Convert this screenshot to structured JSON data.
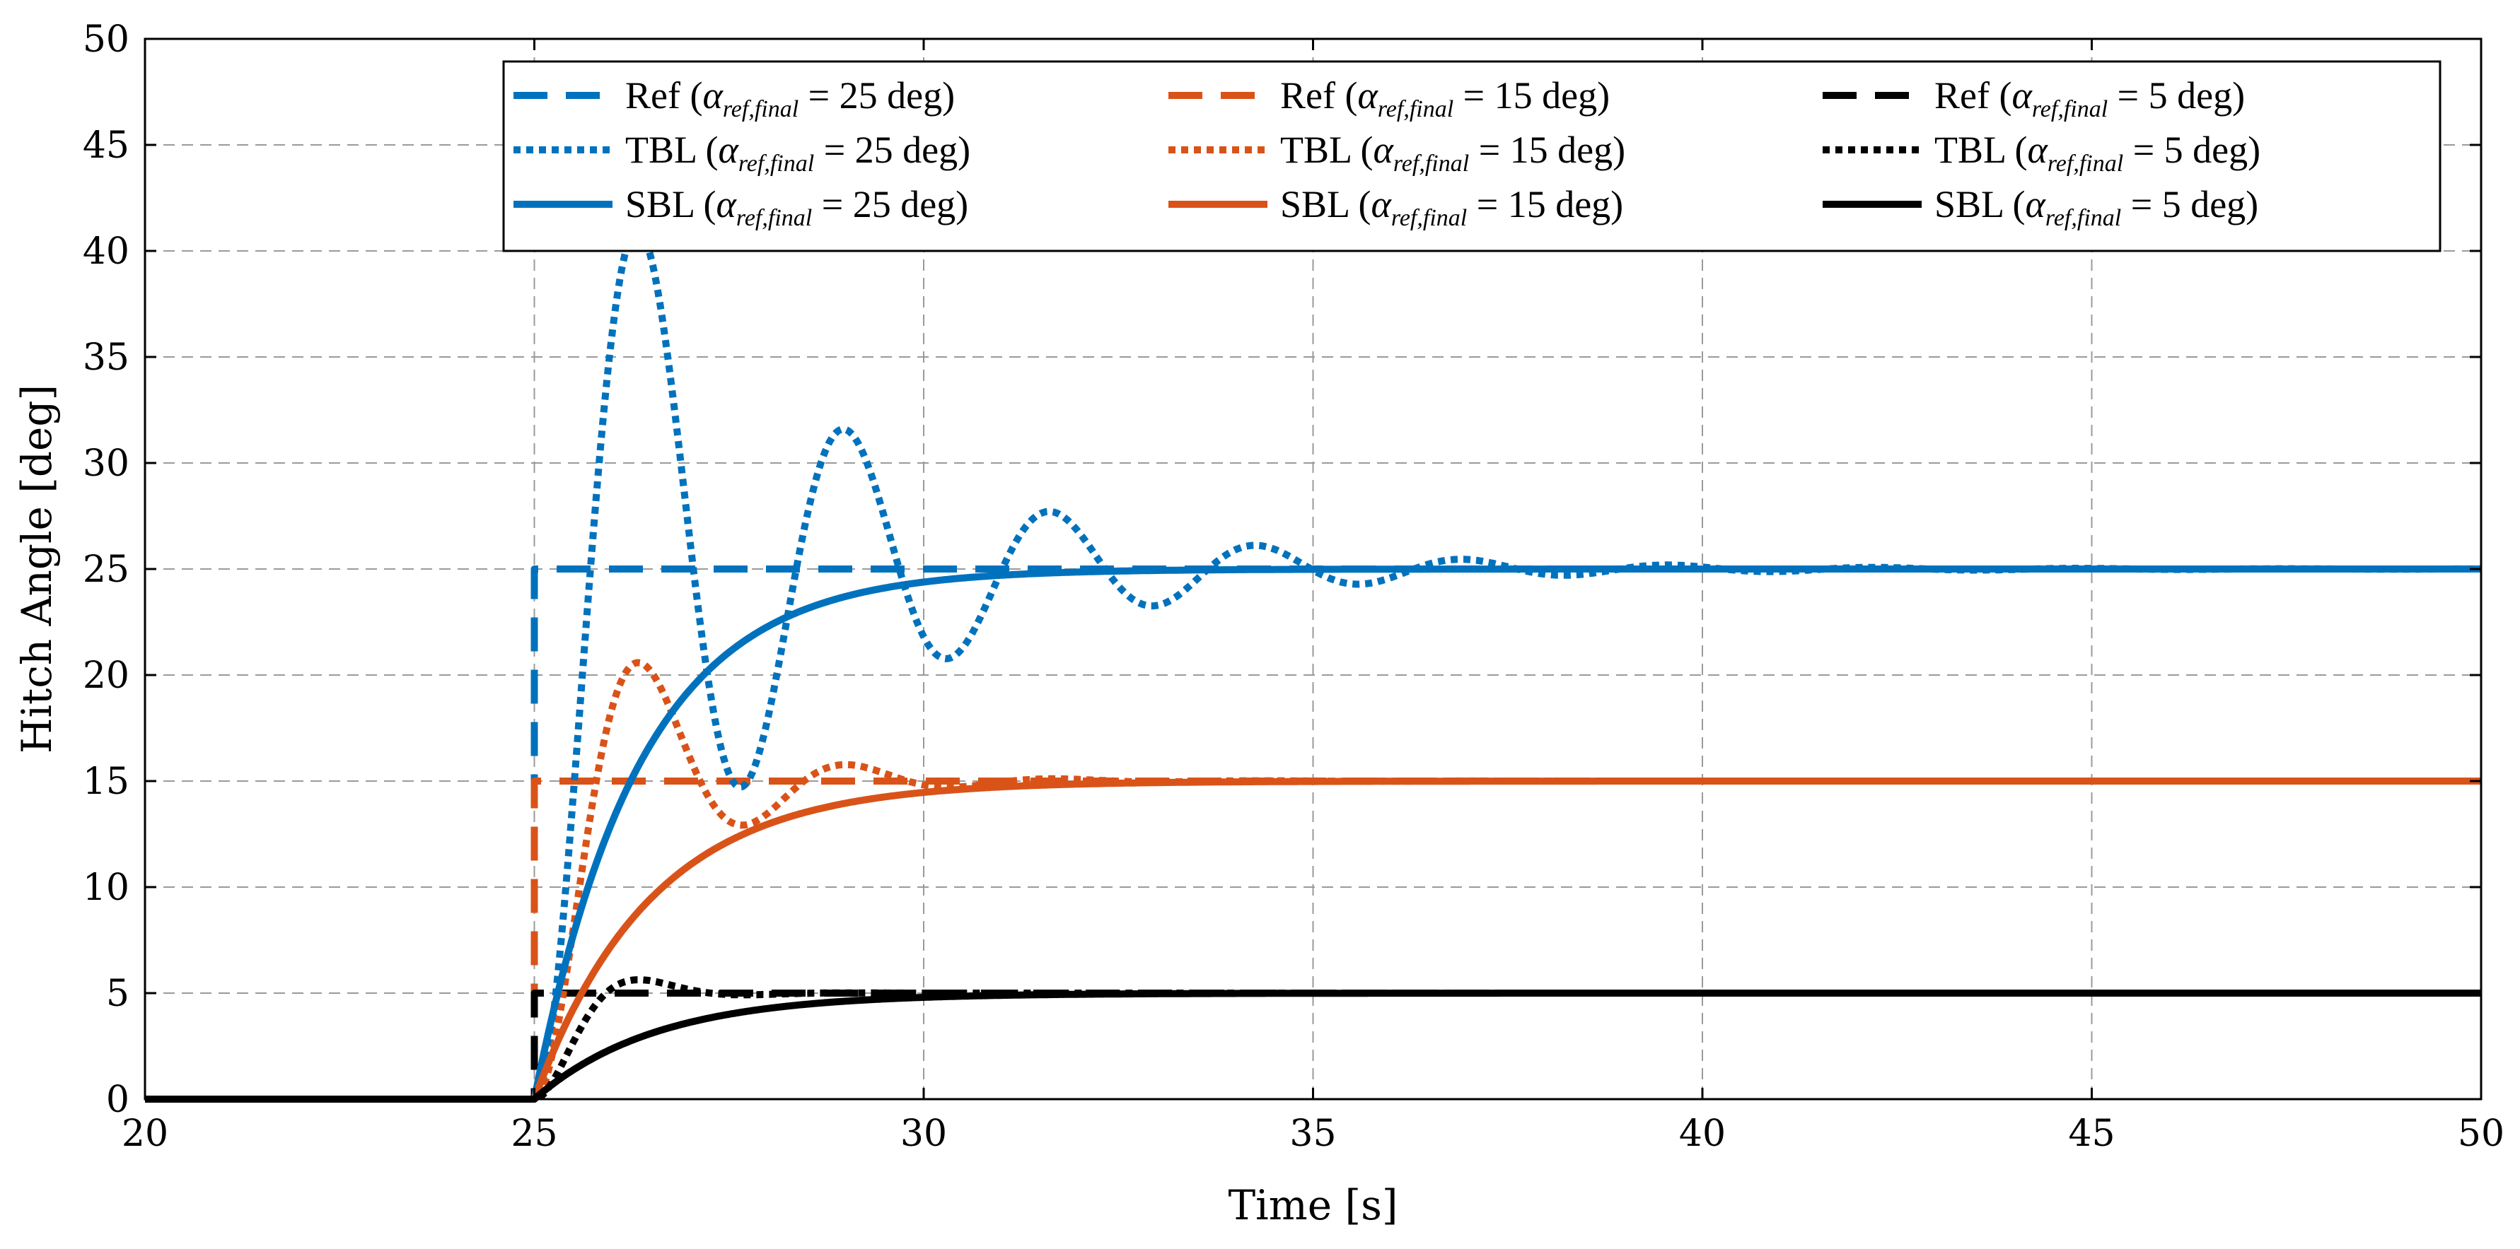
{
  "chart_data": {
    "type": "line",
    "title": "",
    "xlabel": "Time [s]",
    "ylabel": "Hitch Angle [deg]",
    "xlim": [
      20,
      50
    ],
    "ylim": [
      0,
      50
    ],
    "xticks": [
      20,
      25,
      30,
      35,
      40,
      45,
      50
    ],
    "yticks": [
      0,
      5,
      10,
      15,
      20,
      25,
      30,
      35,
      40,
      45,
      50
    ],
    "grid": true,
    "legend_position": "top-right",
    "colors": {
      "blue": "#0072BD",
      "orange": "#D95319",
      "black": "#000000"
    },
    "series": [
      {
        "name": "Ref (α_ref,final = 25 deg)",
        "legend_prefix": "Ref",
        "legend_value": "25",
        "style": "dashed",
        "color": "blue",
        "points": [
          [
            20,
            0
          ],
          [
            25,
            0
          ],
          [
            25,
            25
          ],
          [
            50,
            25
          ]
        ]
      },
      {
        "name": "Ref (α_ref,final = 15 deg)",
        "legend_prefix": "Ref",
        "legend_value": "15",
        "style": "dashed",
        "color": "orange",
        "points": [
          [
            20,
            0
          ],
          [
            25,
            0
          ],
          [
            25,
            15
          ],
          [
            50,
            15
          ]
        ]
      },
      {
        "name": "Ref (α_ref,final = 5 deg)",
        "legend_prefix": "Ref",
        "legend_value": "5",
        "style": "dashed",
        "color": "black",
        "points": [
          [
            20,
            0
          ],
          [
            25,
            0
          ],
          [
            25,
            5
          ],
          [
            50,
            5
          ]
        ]
      },
      {
        "name": "TBL (α_ref,final = 25 deg)",
        "legend_prefix": "TBL",
        "legend_value": "25",
        "style": "dotted",
        "color": "blue",
        "model": {
          "type": "oscillatory",
          "t0": 25,
          "final": 25,
          "zeta": 0.14,
          "wn": 2.4
        }
      },
      {
        "name": "TBL (α_ref,final = 15 deg)",
        "legend_prefix": "TBL",
        "legend_value": "15",
        "style": "dotted",
        "color": "orange",
        "model": {
          "type": "oscillatory",
          "t0": 25,
          "final": 15,
          "zeta": 0.3,
          "wn": 2.47
        }
      },
      {
        "name": "TBL (α_ref,final = 5 deg)",
        "legend_prefix": "TBL",
        "legend_value": "5",
        "style": "dotted",
        "color": "black",
        "model": {
          "type": "oscillatory",
          "t0": 25,
          "final": 5,
          "zeta": 0.55,
          "wn": 2.8
        }
      },
      {
        "name": "SBL (α_ref,final = 25 deg)",
        "legend_prefix": "SBL",
        "legend_value": "25",
        "style": "solid",
        "color": "blue",
        "model": {
          "type": "firstorder",
          "t0": 25,
          "final": 25,
          "tau": 1.35
        }
      },
      {
        "name": "SBL (α_ref,final = 15 deg)",
        "legend_prefix": "SBL",
        "legend_value": "15",
        "style": "solid",
        "color": "orange",
        "model": {
          "type": "firstorder",
          "t0": 25,
          "final": 15,
          "tau": 1.5
        }
      },
      {
        "name": "SBL (α_ref,final = 5 deg)",
        "legend_prefix": "SBL",
        "legend_value": "5",
        "style": "solid",
        "color": "black",
        "model": {
          "type": "firstorder",
          "t0": 25,
          "final": 5,
          "tau": 1.55
        }
      }
    ],
    "legend_units": "deg",
    "legend_symbol": "α",
    "legend_subscript": "ref,final"
  }
}
